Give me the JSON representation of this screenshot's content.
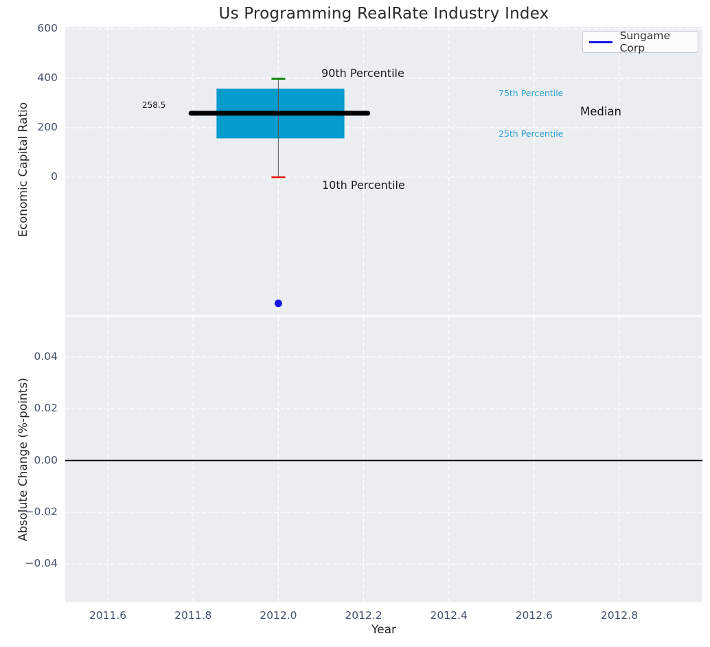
{
  "chart_data": [
    {
      "type": "boxplot",
      "title": "Us Programming RealRate Industry Index",
      "ylabel": "Economic Capital Ratio",
      "xlim": [
        2011.5,
        2012.995
      ],
      "ylim": [
        -558,
        608
      ],
      "yticks": {
        "values": [
          600,
          400,
          200,
          0
        ],
        "labels": [
          "600",
          "400",
          "200",
          "0"
        ]
      },
      "grid": "white dashed, horizontal and vertical",
      "legend": {
        "label": "Sungame Corp",
        "line_color": "#1414e6",
        "position": "upper right"
      },
      "box": {
        "x_center": 2012.0,
        "p90": 398,
        "p75": 358,
        "median": 258.5,
        "p25": 157,
        "p10": 0,
        "box_x": [
          2011.855,
          2012.155
        ],
        "median_x": [
          2011.795,
          2012.21
        ],
        "colors": {
          "box": "#059bcd",
          "median": "#000000",
          "p90_cap": "#008000",
          "p10_cap": "#e80b0b",
          "whisker": "#555555"
        }
      },
      "company_point": {
        "name": "Sungame Corp",
        "x": 2012.0,
        "y": -510,
        "color": "#1414e6"
      },
      "annotations": {
        "p90": "90th Percentile",
        "p10": "10th Percentile",
        "p75": "75th Percentile",
        "p25": "25th Percentile",
        "median": "Median",
        "median_value": "258.5"
      },
      "annotation_percentile_color": "#2ba0d0"
    },
    {
      "type": "line",
      "ylabel": "Absolute Change (%-points)",
      "xlabel": "Year",
      "xlim": [
        2011.5,
        2012.995
      ],
      "ylim": [
        -0.0548,
        0.0556
      ],
      "yticks": {
        "values": [
          0.04,
          0.02,
          0.0,
          -0.02,
          -0.04
        ],
        "labels": [
          "0.04",
          "0.02",
          "0.00",
          "−0.02",
          "−0.04"
        ]
      },
      "xticks": {
        "values": [
          2011.6,
          2011.8,
          2012.0,
          2012.2,
          2012.4,
          2012.6,
          2012.8
        ],
        "labels": [
          "2011.6",
          "2011.8",
          "2012.0",
          "2012.2",
          "2012.4",
          "2012.6",
          "2012.8"
        ]
      },
      "zero_line": 0.0,
      "zero_line_color": "#000000",
      "series": []
    }
  ]
}
